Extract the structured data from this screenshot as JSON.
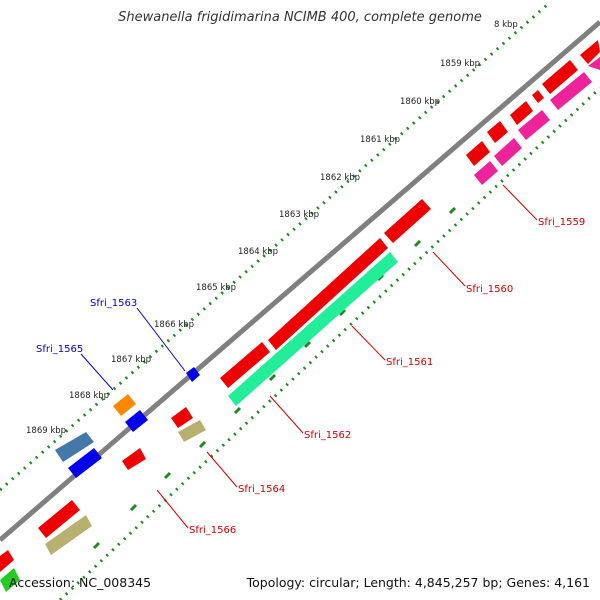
{
  "title": "Shewanella frigidimarina NCIMB 400, complete genome",
  "footer": {
    "accession": "Accession: NC_008345",
    "topology": "Topology: circular; Length: 4,845,257 bp; Genes: 4,161"
  },
  "ticks": [
    "8 kbp",
    "1859 kbp",
    "1860 kbp",
    "1861 kbp",
    "1862 kbp",
    "1863 kbp",
    "1864 kbp",
    "1865 kbp",
    "1866 kbp",
    "1867 kbp",
    "1868 kbp",
    "1869 kbp"
  ],
  "gene_labels": [
    {
      "text": "Sfri_1559",
      "color": "#cc0000"
    },
    {
      "text": "Sfri_1560",
      "color": "#cc0000"
    },
    {
      "text": "Sfri_1561",
      "color": "#cc0000"
    },
    {
      "text": "Sfri_1562",
      "color": "#cc0000"
    },
    {
      "text": "Sfri_1563",
      "color": "#0000cc"
    },
    {
      "text": "Sfri_1564",
      "color": "#cc0000"
    },
    {
      "text": "Sfri_1565",
      "color": "#0000cc"
    },
    {
      "text": "Sfri_1566",
      "color": "#cc0000"
    }
  ],
  "colors": {
    "backbone": "#808080",
    "red_gene": "#ee0000",
    "pink_gene": "#ee2299",
    "green_gene": "#22ee99",
    "blue_gene": "#0000ee",
    "steel_gene": "#4477aa",
    "orange_gene": "#ff8800",
    "khaki_gene": "#b8b070",
    "tick_dots": "#228822"
  }
}
